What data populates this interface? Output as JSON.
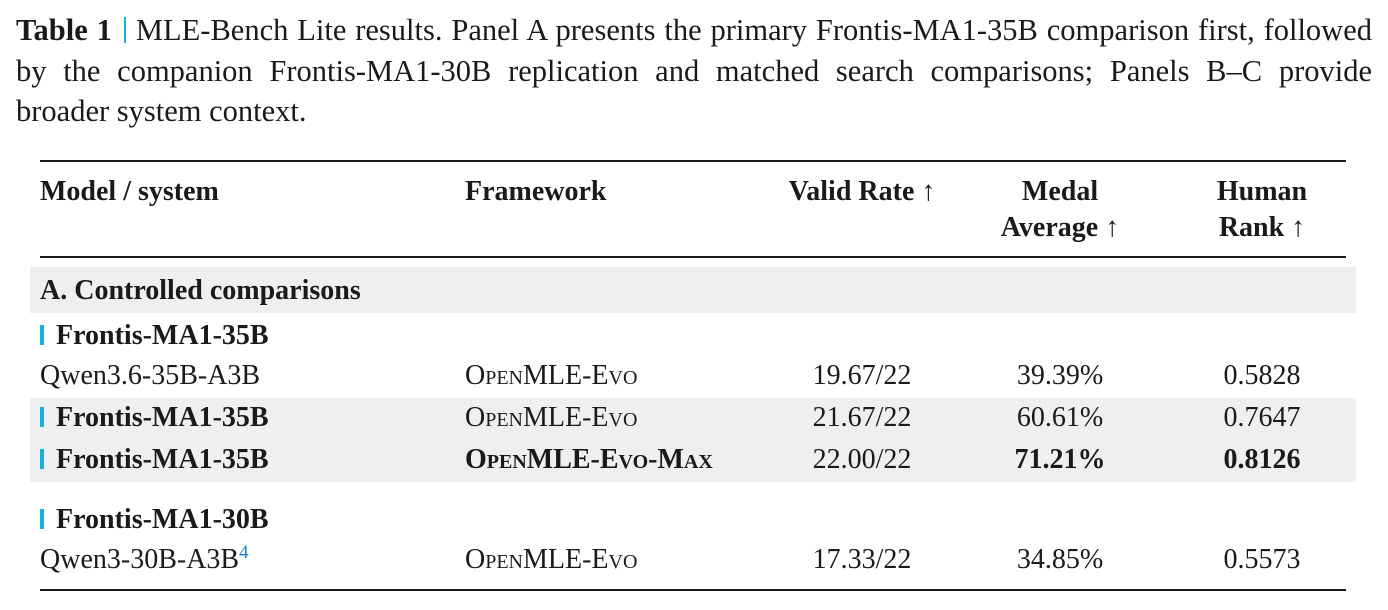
{
  "caption": {
    "label": "Table 1",
    "text": "MLE-Bench Lite results. Panel A presents the primary Frontis-MA1-35B comparison first, followed by the companion Frontis-MA1-30B replication and matched search comparisons; Panels B–C provide broader system context."
  },
  "table": {
    "headers": [
      "Model / system",
      "Framework",
      "Valid Rate ↑",
      "Medal Average ↑",
      "Human Rank ↑"
    ],
    "section": "A. Controlled comparisons",
    "groups": [
      {
        "label": "Frontis-MA1-35B",
        "rows": [
          [
            "Qwen3.6-35B-A3B",
            "OpenMLE-Evo",
            "19.67/22",
            "39.39%",
            "0.5828"
          ],
          [
            "Frontis-MA1-35B",
            "OpenMLE-Evo",
            "21.67/22",
            "60.61%",
            "0.7647"
          ],
          [
            "Frontis-MA1-35B",
            "OpenMLE-Evo-Max",
            "22.00/22",
            "71.21%",
            "0.8126"
          ]
        ]
      },
      {
        "label": "Frontis-MA1-30B",
        "rows": [
          [
            "Qwen3-30B-A3B",
            "OpenMLE-Evo",
            "17.33/22",
            "34.85%",
            "0.5573"
          ]
        ],
        "footnote": "4"
      }
    ]
  }
}
